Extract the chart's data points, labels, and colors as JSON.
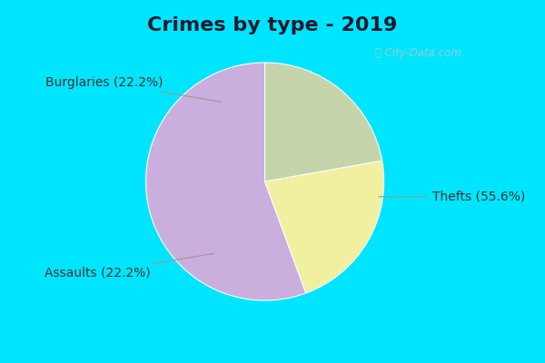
{
  "title": "Crimes by type - 2019",
  "slices": [
    {
      "label": "Thefts (55.6%)",
      "value": 55.6,
      "color": "#c9aede"
    },
    {
      "label": "Burglaries (22.2%)",
      "value": 22.2,
      "color": "#f0f0a0"
    },
    {
      "label": "Assaults (22.2%)",
      "value": 22.2,
      "color": "#c5d4aa"
    }
  ],
  "fig_bg": "#00e5ff",
  "inner_bg": "#e0f5ee",
  "watermark": "ⓘ City-Data.com",
  "title_fontsize": 16,
  "label_fontsize": 10,
  "startangle": 90,
  "title_color": "#1a1a2e"
}
